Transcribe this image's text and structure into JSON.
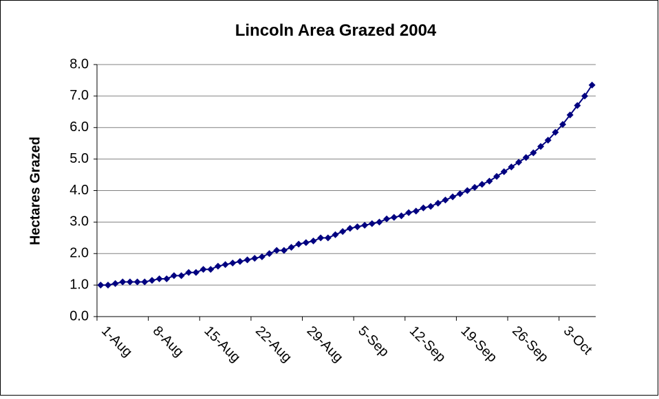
{
  "chart_data": {
    "type": "line",
    "title": "Lincoln Area Grazed  2004",
    "y_label": "Hectares Grazed",
    "categories": [
      "1-Aug",
      null,
      null,
      null,
      null,
      null,
      null,
      "8-Aug",
      null,
      null,
      null,
      null,
      null,
      null,
      "15-Aug",
      null,
      null,
      null,
      null,
      null,
      null,
      "22-Aug",
      null,
      null,
      null,
      null,
      null,
      null,
      "29-Aug",
      null,
      null,
      null,
      null,
      null,
      null,
      "5-Sep",
      null,
      null,
      null,
      null,
      null,
      null,
      "12-Sep",
      null,
      null,
      null,
      null,
      null,
      null,
      "19-Sep",
      null,
      null,
      null,
      null,
      null,
      null,
      "26-Sep",
      null,
      null,
      null,
      null,
      null,
      null,
      "3-Oct",
      null,
      null,
      null,
      null
    ],
    "series": [
      {
        "name": "Hectares Grazed",
        "color": "#000080",
        "values": [
          1.0,
          1.0,
          1.05,
          1.1,
          1.1,
          1.1,
          1.1,
          1.15,
          1.2,
          1.2,
          1.3,
          1.3,
          1.4,
          1.4,
          1.5,
          1.5,
          1.6,
          1.65,
          1.7,
          1.75,
          1.8,
          1.85,
          1.9,
          2.0,
          2.1,
          2.1,
          2.2,
          2.3,
          2.35,
          2.4,
          2.5,
          2.5,
          2.6,
          2.7,
          2.8,
          2.85,
          2.9,
          2.95,
          3.0,
          3.1,
          3.15,
          3.2,
          3.3,
          3.35,
          3.45,
          3.5,
          3.6,
          3.7,
          3.8,
          3.9,
          4.0,
          4.1,
          4.2,
          4.3,
          4.45,
          4.6,
          4.75,
          4.9,
          5.05,
          5.2,
          5.4,
          5.6,
          5.85,
          6.1,
          6.4,
          6.7,
          7.0,
          7.35
        ]
      }
    ],
    "ylim": [
      0,
      8
    ],
    "yticks": [
      {
        "value": 0,
        "label": "0.0"
      },
      {
        "value": 1,
        "label": "1.0"
      },
      {
        "value": 2,
        "label": "2.0"
      },
      {
        "value": 3,
        "label": "3.0"
      },
      {
        "value": 4,
        "label": "4.0"
      },
      {
        "value": 5,
        "label": "5.0"
      },
      {
        "value": 6,
        "label": "6.0"
      },
      {
        "value": 7,
        "label": "7.0"
      },
      {
        "value": 8,
        "label": "8.0"
      }
    ],
    "grid": true
  }
}
